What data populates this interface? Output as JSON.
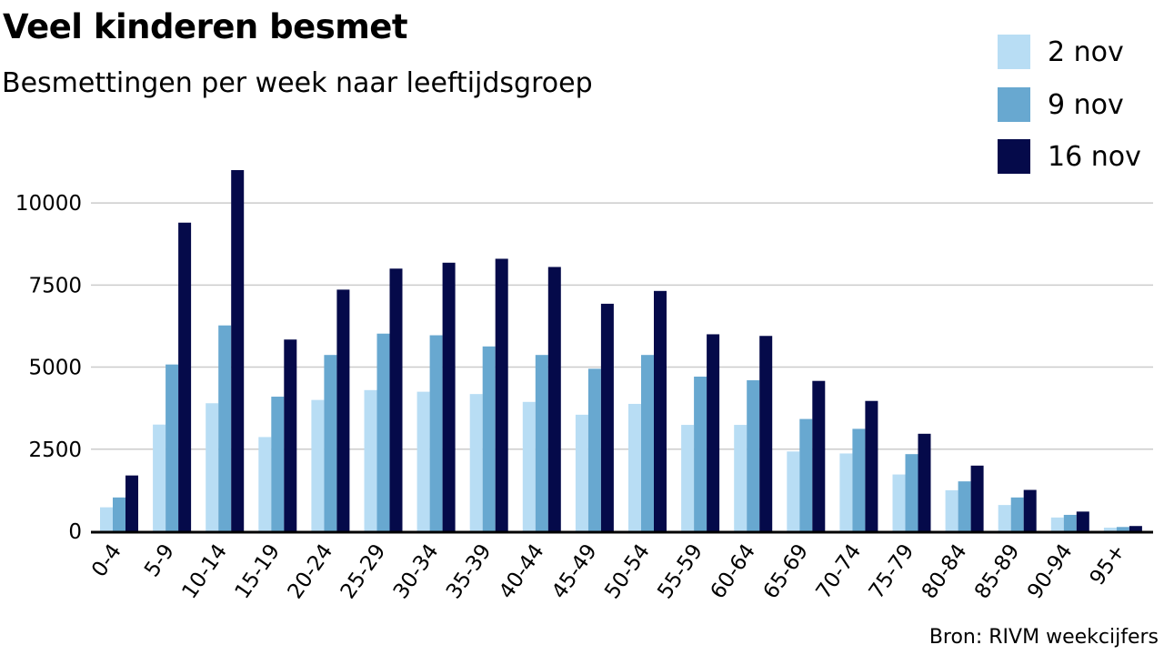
{
  "header": {
    "title": "Veel kinderen besmet",
    "subtitle": "Besmettingen per week naar leeftijdsgroep"
  },
  "source": "Bron: RIVM weekcijfers",
  "chart_data": {
    "type": "bar",
    "categories": [
      "0-4",
      "5-9",
      "10-14",
      "15-19",
      "20-24",
      "25-29",
      "30-34",
      "35-39",
      "40-44",
      "45-49",
      "50-54",
      "55-59",
      "60-64",
      "65-69",
      "70-74",
      "75-79",
      "80-84",
      "85-89",
      "90-94",
      "95+"
    ],
    "series": [
      {
        "name": "2 nov",
        "color": "#b8ddf4",
        "values": [
          730,
          3250,
          3900,
          2870,
          4000,
          4300,
          4250,
          4180,
          3940,
          3550,
          3880,
          3240,
          3240,
          2430,
          2370,
          1730,
          1250,
          800,
          420,
          110
        ]
      },
      {
        "name": "9 nov",
        "color": "#68a8d0",
        "values": [
          1030,
          5080,
          6270,
          4100,
          5370,
          6020,
          5970,
          5630,
          5370,
          4950,
          5370,
          4710,
          4600,
          3420,
          3120,
          2350,
          1520,
          1030,
          500,
          130
        ]
      },
      {
        "name": "16 nov",
        "color": "#050a4a",
        "values": [
          1700,
          9400,
          11000,
          5840,
          7360,
          8000,
          8180,
          8300,
          8050,
          6930,
          7320,
          6000,
          5950,
          4580,
          3970,
          2970,
          2000,
          1260,
          600,
          160
        ]
      }
    ],
    "yticks": [
      0,
      2500,
      5000,
      7500,
      10000
    ],
    "ylim": [
      0,
      11000
    ],
    "legend": "top-right",
    "grid": true
  }
}
